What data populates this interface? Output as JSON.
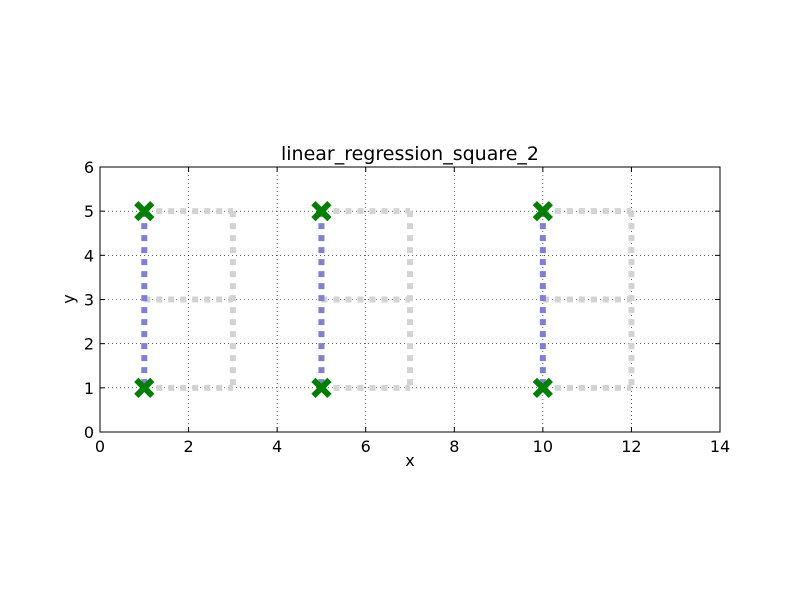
{
  "chart_data": {
    "type": "line",
    "title": "linear_regression_square_2",
    "xlabel": "x",
    "ylabel": "y",
    "xlim": [
      0,
      14
    ],
    "ylim": [
      0,
      6
    ],
    "xticks": [
      0,
      2,
      4,
      6,
      8,
      10,
      12,
      14
    ],
    "yticks": [
      0,
      1,
      2,
      3,
      4,
      5,
      6
    ],
    "grid": true,
    "series": [
      {
        "role": "squares-outline",
        "color": "#d3d3d3",
        "style": "dotted-thick",
        "segments": [
          [
            [
              1,
              5
            ],
            [
              3,
              5
            ]
          ],
          [
            [
              3,
              5
            ],
            [
              3,
              1
            ]
          ],
          [
            [
              1,
              3
            ],
            [
              3,
              3
            ]
          ],
          [
            [
              1,
              1
            ],
            [
              3,
              1
            ]
          ],
          [
            [
              5,
              5
            ],
            [
              7,
              5
            ]
          ],
          [
            [
              7,
              5
            ],
            [
              7,
              1
            ]
          ],
          [
            [
              5,
              3
            ],
            [
              7,
              3
            ]
          ],
          [
            [
              5,
              1
            ],
            [
              7,
              1
            ]
          ],
          [
            [
              10,
              5
            ],
            [
              12,
              5
            ]
          ],
          [
            [
              12,
              5
            ],
            [
              12,
              1
            ]
          ],
          [
            [
              10,
              3
            ],
            [
              12,
              3
            ]
          ],
          [
            [
              10,
              1
            ],
            [
              12,
              1
            ]
          ]
        ]
      },
      {
        "role": "vertical-fit",
        "color": "#7f7fd4",
        "style": "dotted-thick",
        "segments": [
          [
            [
              1,
              5
            ],
            [
              1,
              1
            ]
          ],
          [
            [
              5,
              5
            ],
            [
              5,
              1
            ]
          ],
          [
            [
              10,
              5
            ],
            [
              10,
              1
            ]
          ]
        ]
      },
      {
        "role": "points",
        "color": "#008000",
        "marker": "x",
        "points": [
          [
            1,
            5
          ],
          [
            1,
            1
          ],
          [
            5,
            5
          ],
          [
            5,
            1
          ],
          [
            10,
            5
          ],
          [
            10,
            1
          ]
        ]
      }
    ]
  }
}
